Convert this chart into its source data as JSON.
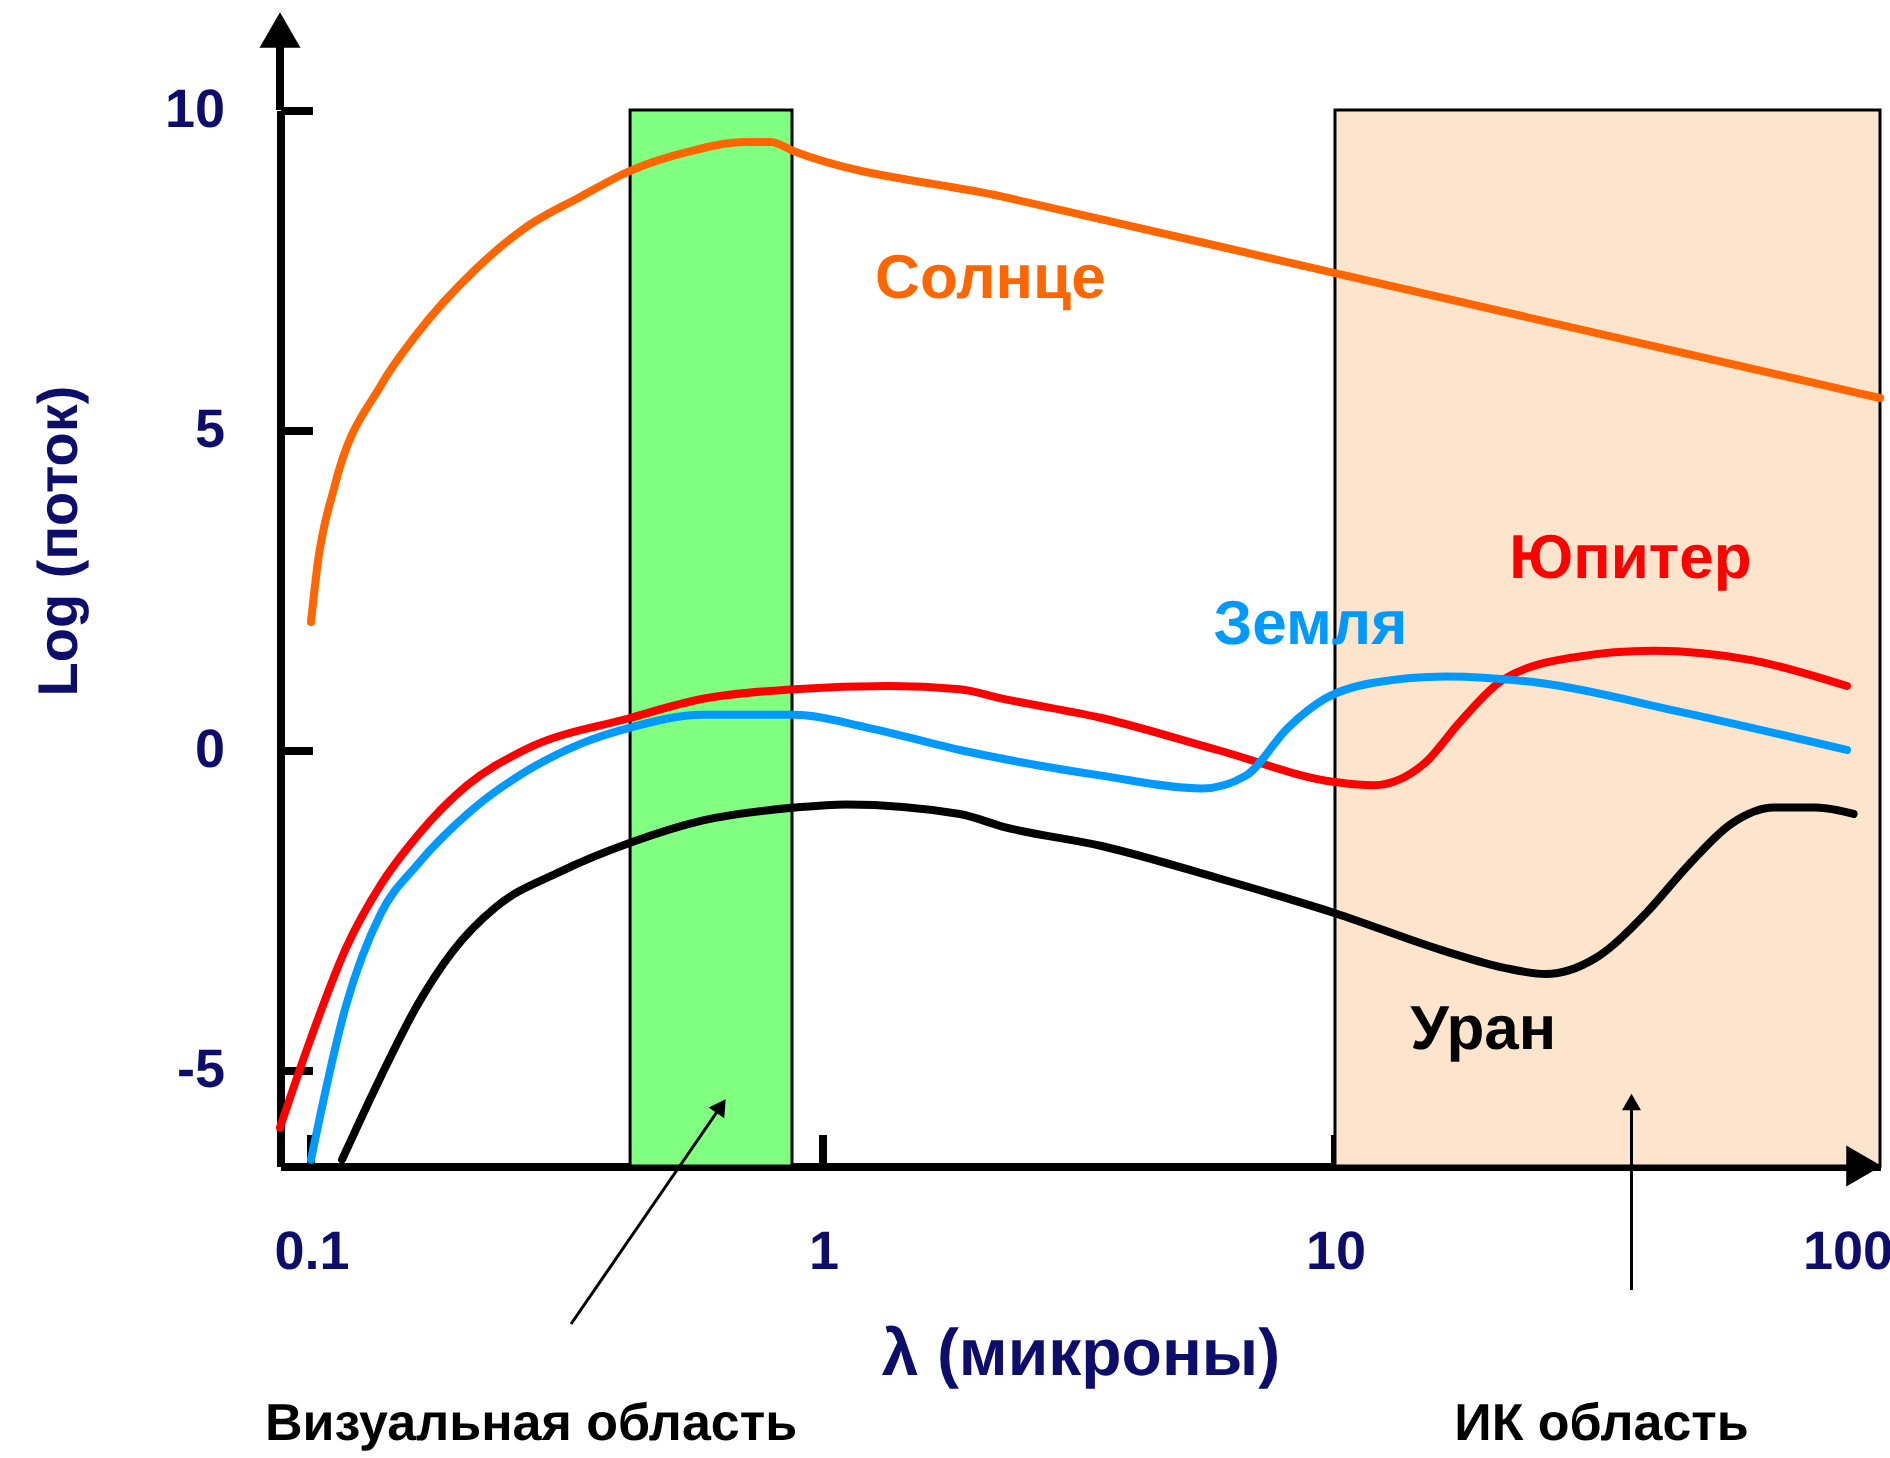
{
  "chart_data": {
    "type": "line",
    "xlabel": "λ (микроны)",
    "ylabel": "Log (поток)",
    "log": "x",
    "xlim": [
      0.087,
      116
    ],
    "xticks": [
      0.1,
      1,
      10,
      100
    ],
    "ylim": [
      -6.5,
      10
    ],
    "yticks": [
      -5,
      0,
      5,
      10
    ],
    "grid": false,
    "legend": false,
    "marker": "none",
    "line_style": "solid",
    "bands": [
      {
        "axis": "x",
        "from": 0.42,
        "to": 0.87,
        "color": "#80ff80"
      },
      {
        "axis": "x",
        "from": 10,
        "to": 116,
        "color": "#fde4cc"
      }
    ],
    "annotations": [
      "Визуальная область",
      "ИК область"
    ],
    "series": [
      {
        "name": "Солнце",
        "color": "#ff6600",
        "x": [
          0.1,
          0.103,
          0.111,
          0.137,
          0.161,
          0.209,
          0.261,
          0.337,
          0.42,
          0.547,
          0.705,
          0.79,
          0.88,
          2.23,
          10,
          116
        ],
        "values": [
          2.0,
          2.9,
          4.1,
          5.7,
          6.5,
          7.5,
          8.15,
          8.65,
          9.05,
          9.35,
          9.5,
          9.5,
          9.35,
          8.65,
          7.45,
          5.5
        ]
      },
      {
        "name": "Юпитер",
        "color": "#ff0000",
        "x": [
          0.087,
          0.1,
          0.117,
          0.137,
          0.161,
          0.202,
          0.261,
          0.42,
          0.583,
          0.88,
          1.35,
          1.85,
          2.25,
          3.5,
          5.9,
          10,
          11.9,
          15,
          17.6,
          21.3,
          29.4,
          41.8,
          65.5,
          100
        ],
        "values": [
          -5.9,
          -4.5,
          -3.1,
          -2.1,
          -1.35,
          -0.55,
          0,
          0.5,
          0.8,
          0.95,
          1.0,
          0.95,
          0.8,
          0.5,
          0,
          -0.5,
          -0.55,
          -0.2,
          0.45,
          1.1,
          1.45,
          1.55,
          1.4,
          1.0
        ]
      },
      {
        "name": "Земля",
        "color": "#0099ff",
        "x": [
          0.1,
          0.117,
          0.137,
          0.161,
          0.202,
          0.261,
          0.337,
          0.42,
          0.583,
          0.88,
          1.22,
          1.85,
          3.5,
          5.5,
          6.7,
          8.1,
          9.55,
          11.9,
          16.5,
          25,
          47,
          100
        ],
        "values": [
          -6.4,
          -4.0,
          -2.55,
          -1.8,
          -1.0,
          -0.35,
          0.1,
          0.35,
          0.55,
          0.55,
          0.35,
          0,
          -0.4,
          -0.6,
          -0.4,
          0.35,
          0.8,
          1.05,
          1.15,
          1.05,
          0.6,
          0
        ]
      },
      {
        "name": "Уран",
        "color": "#000000",
        "x": [
          0.115,
          0.137,
          0.161,
          0.189,
          0.23,
          0.307,
          0.42,
          0.583,
          0.88,
          1.11,
          1.85,
          2.25,
          3.5,
          5.9,
          10,
          16.5,
          21.3,
          25.8,
          32.3,
          40.5,
          49,
          59.5,
          72,
          87,
          103
        ],
        "values": [
          -6.4,
          -5.1,
          -4.0,
          -3.15,
          -2.45,
          -1.9,
          -1.45,
          -1.1,
          -0.9,
          -0.85,
          -1.0,
          -1.2,
          -1.5,
          -2.0,
          -2.55,
          -3.15,
          -3.4,
          -3.5,
          -3.25,
          -2.55,
          -1.8,
          -1.15,
          -0.9,
          -0.9,
          -1.0
        ]
      }
    ]
  }
}
